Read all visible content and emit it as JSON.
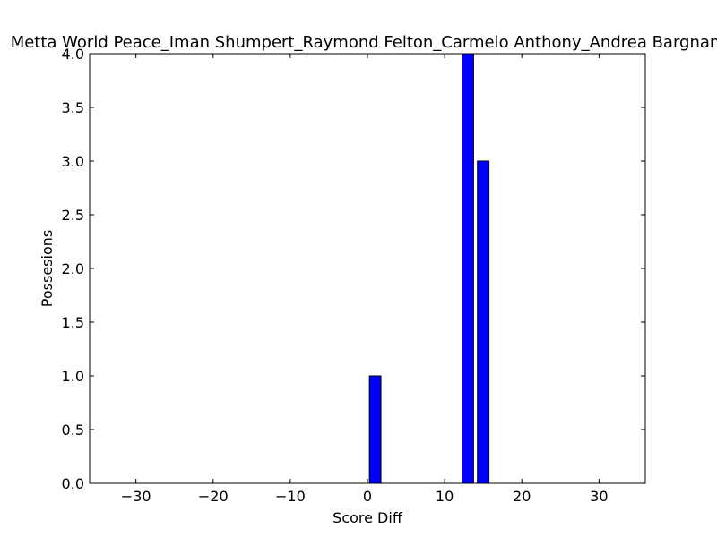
{
  "chart_data": {
    "type": "bar",
    "title": "Metta World Peace_Iman Shumpert_Raymond Felton_Carmelo Anthony_Andrea Bargnani",
    "xlabel": "Score Diff",
    "ylabel": "Possesions",
    "xlim": [
      -36,
      36
    ],
    "ylim": [
      0,
      4
    ],
    "bar_width": 1.5,
    "x": [
      1,
      13,
      15
    ],
    "values": [
      1,
      4,
      3
    ],
    "xticks": [
      -30,
      -20,
      -10,
      0,
      10,
      20,
      30
    ],
    "xtick_labels": [
      "−30",
      "−20",
      "−10",
      "0",
      "10",
      "20",
      "30"
    ],
    "yticks": [
      0,
      0.5,
      1,
      1.5,
      2,
      2.5,
      3,
      3.5,
      4
    ],
    "ytick_labels": [
      "0.0",
      "0.5",
      "1.0",
      "1.5",
      "2.0",
      "2.5",
      "3.0",
      "3.5",
      "4.0"
    ],
    "bar_color": "#0000ff",
    "edge_color": "#000000",
    "grid": false,
    "legend": "none"
  }
}
